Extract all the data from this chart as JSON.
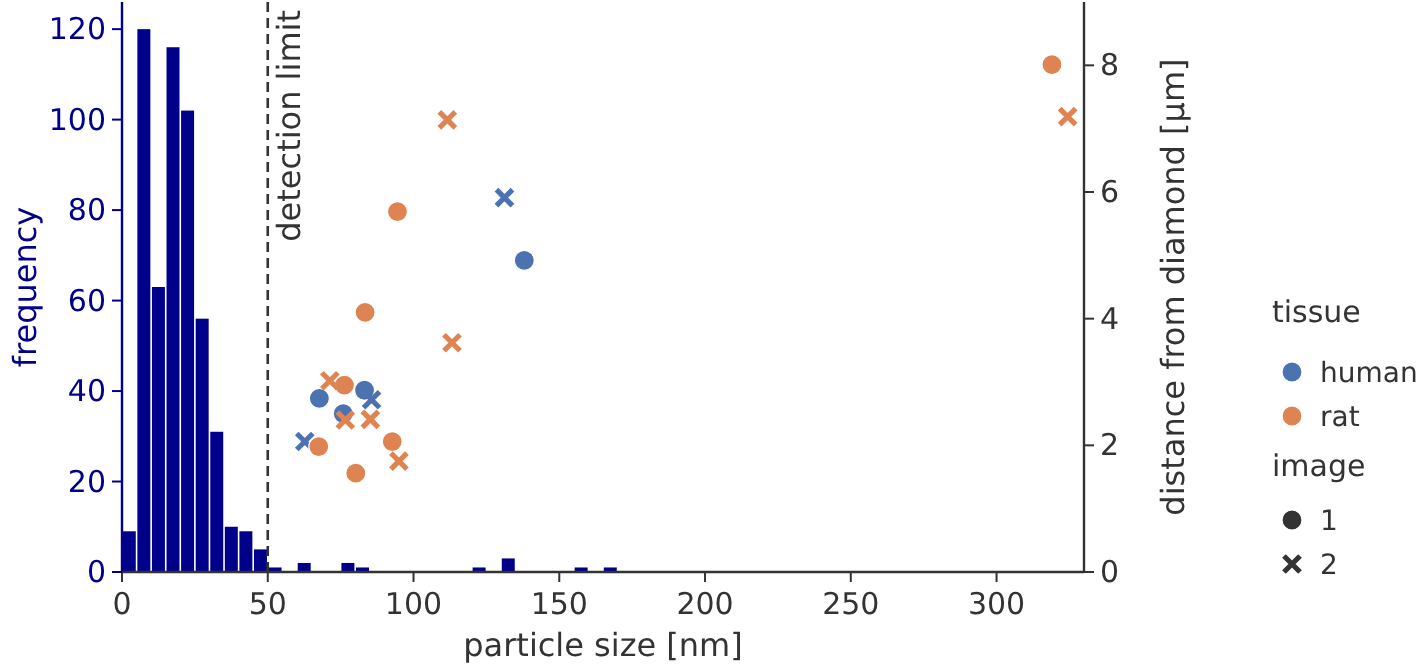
{
  "chart_data": {
    "type": "histogram",
    "xlabel": "particle size [nm]",
    "ylabel": "frequency",
    "y2label": "distance from diamond [µm]",
    "xlim": [
      0,
      330
    ],
    "xticks": [
      0,
      50,
      100,
      150,
      200,
      250,
      300
    ],
    "ylim": [
      0,
      126
    ],
    "yticks": [
      0,
      20,
      40,
      60,
      80,
      100,
      120
    ],
    "y2lim": [
      0,
      9
    ],
    "y2ticks": [
      0,
      2,
      4,
      6,
      8
    ],
    "bins": [
      0,
      5,
      10,
      15,
      20,
      25,
      30,
      35,
      40,
      45,
      50,
      55,
      60,
      65,
      70,
      75,
      80,
      85,
      90,
      95,
      100,
      105,
      110,
      115,
      120,
      125,
      130,
      135,
      140,
      145,
      150,
      155,
      160,
      165,
      170
    ],
    "grid": false,
    "legend": "right",
    "legend_title": [
      "tissue",
      "image"
    ],
    "annotations": [
      "1",
      "2"
    ],
    "ref_lines": [
      {
        "axis": "x",
        "value": 50,
        "label": "detection limit",
        "color": "#333333",
        "line_style": "dashed"
      }
    ],
    "series": [
      {
        "color": "#00008b",
        "values": [
          9,
          120,
          63,
          116,
          102,
          56,
          31,
          10,
          9,
          5,
          1,
          0,
          2,
          0,
          0,
          2,
          1,
          0,
          0,
          0,
          0,
          0,
          0,
          0,
          1,
          0,
          3,
          0,
          0,
          0,
          0,
          1,
          0,
          1
        ]
      },
      {
        "type": "scatter",
        "axis": "y2",
        "name": "human",
        "marker": "circle",
        "color": "#4c72b0",
        "x": [
          138,
          67.7,
          83.2,
          75.9
        ],
        "values": [
          4.92,
          2.74,
          2.87,
          2.5
        ]
      },
      {
        "type": "scatter",
        "axis": "y2",
        "marker": "cross",
        "color": "#4c72b0",
        "x": [
          131.2,
          85.6,
          62.7
        ],
        "values": [
          5.91,
          2.72,
          2.06
        ]
      },
      {
        "type": "scatter",
        "axis": "y2",
        "name": "rat",
        "marker": "circle",
        "color": "#dd8452",
        "x": [
          94.5,
          83.4,
          76.3,
          67.5,
          92.7,
          80.2,
          319
        ],
        "values": [
          5.69,
          4.1,
          2.95,
          1.98,
          2.06,
          1.56,
          8.01
        ]
      },
      {
        "type": "scatter",
        "axis": "y2",
        "marker": "cross",
        "color": "#dd8452",
        "x": [
          111.6,
          113.2,
          71.3,
          76.6,
          85.2,
          95,
          324.4
        ],
        "values": [
          7.14,
          3.62,
          3.02,
          2.4,
          2.41,
          1.75,
          7.19
        ]
      }
    ]
  }
}
